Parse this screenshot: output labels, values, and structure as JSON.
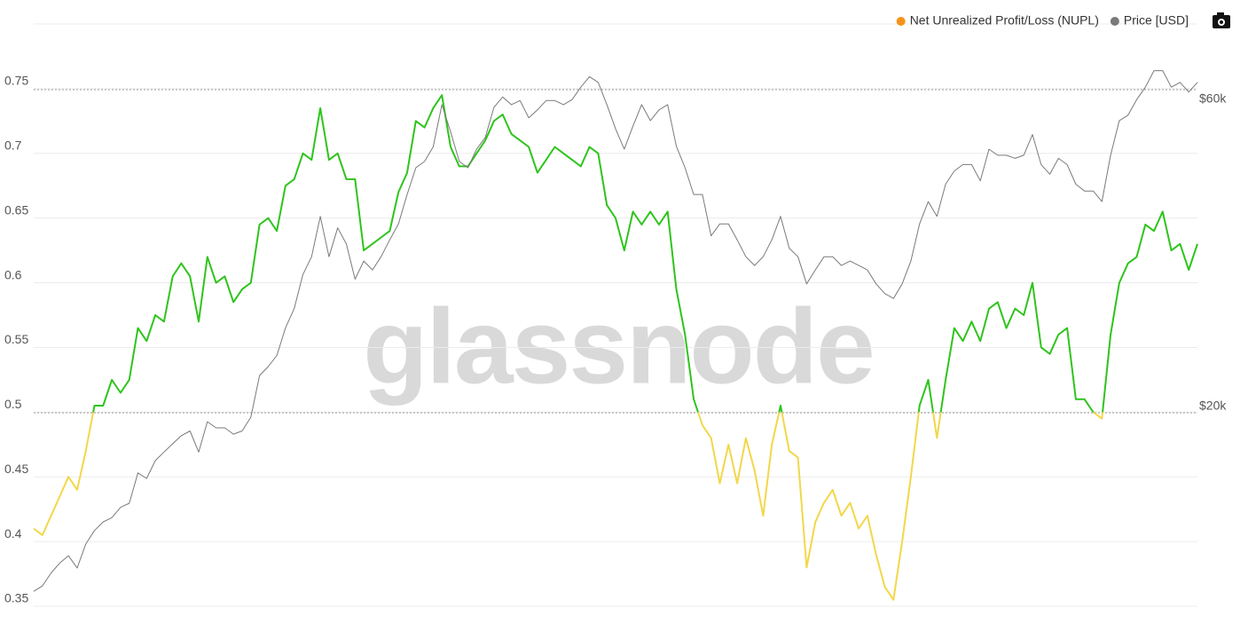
{
  "chart_data": {
    "type": "line",
    "watermark": "glassnode",
    "series": [
      {
        "name": "Net Unrealized Profit/Loss (NUPL)",
        "color": "#f7931a",
        "color_zones": [
          {
            "max": 0.5,
            "color": "#f2d74a"
          },
          {
            "color": "#2ec41c"
          }
        ],
        "values": [
          0.41,
          0.405,
          0.42,
          0.435,
          0.45,
          0.44,
          0.47,
          0.505,
          0.505,
          0.525,
          0.515,
          0.525,
          0.565,
          0.555,
          0.575,
          0.57,
          0.605,
          0.615,
          0.605,
          0.57,
          0.62,
          0.6,
          0.605,
          0.585,
          0.595,
          0.6,
          0.645,
          0.65,
          0.64,
          0.675,
          0.68,
          0.7,
          0.695,
          0.735,
          0.695,
          0.7,
          0.68,
          0.68,
          0.625,
          0.63,
          0.635,
          0.64,
          0.67,
          0.685,
          0.725,
          0.72,
          0.735,
          0.745,
          0.705,
          0.69,
          0.69,
          0.7,
          0.71,
          0.725,
          0.73,
          0.715,
          0.71,
          0.705,
          0.685,
          0.695,
          0.705,
          0.7,
          0.695,
          0.69,
          0.705,
          0.7,
          0.66,
          0.65,
          0.625,
          0.655,
          0.645,
          0.655,
          0.645,
          0.655,
          0.595,
          0.56,
          0.51,
          0.49,
          0.48,
          0.445,
          0.475,
          0.445,
          0.48,
          0.455,
          0.42,
          0.475,
          0.505,
          0.47,
          0.465,
          0.38,
          0.415,
          0.43,
          0.44,
          0.42,
          0.43,
          0.41,
          0.42,
          0.39,
          0.365,
          0.355,
          0.4,
          0.45,
          0.505,
          0.525,
          0.48,
          0.525,
          0.565,
          0.555,
          0.57,
          0.555,
          0.58,
          0.585,
          0.565,
          0.58,
          0.575,
          0.6,
          0.55,
          0.545,
          0.56,
          0.565,
          0.51,
          0.51,
          0.5,
          0.495,
          0.56,
          0.6,
          0.615,
          0.62,
          0.645,
          0.64,
          0.655,
          0.625,
          0.63,
          0.61,
          0.63
        ]
      },
      {
        "name": "Price [USD]",
        "color": "#7a7a7a",
        "axis": "y2",
        "values": [
          10900,
          11100,
          11600,
          12000,
          12300,
          11800,
          12800,
          13400,
          13800,
          14000,
          14500,
          14700,
          16300,
          16000,
          17000,
          17500,
          18000,
          18500,
          18800,
          17500,
          19400,
          19000,
          19000,
          18600,
          18800,
          19700,
          22700,
          23400,
          24300,
          26700,
          28500,
          32000,
          34000,
          39000,
          34000,
          37500,
          35500,
          31500,
          33500,
          32500,
          34000,
          36000,
          38000,
          42000,
          46000,
          47000,
          49400,
          57000,
          52000,
          47000,
          46000,
          49000,
          51000,
          56500,
          58500,
          57000,
          57800,
          54500,
          56000,
          57800,
          57800,
          57000,
          58000,
          60500,
          62700,
          61500,
          57000,
          52500,
          49000,
          53000,
          57000,
          54000,
          56000,
          57000,
          49500,
          46000,
          42000,
          42000,
          36500,
          38000,
          38000,
          36000,
          34000,
          33000,
          34000,
          36000,
          39000,
          35000,
          34000,
          31000,
          32500,
          34000,
          34000,
          33000,
          33500,
          33000,
          32500,
          31000,
          30000,
          29500,
          31000,
          33500,
          38000,
          41000,
          39000,
          43500,
          45500,
          46500,
          46500,
          44000,
          49000,
          48000,
          48000,
          47500,
          48000,
          51500,
          46500,
          45000,
          47500,
          46500,
          43500,
          42500,
          42500,
          41000,
          48000,
          54000,
          55000,
          58000,
          60500,
          64000,
          64000,
          60500,
          61500,
          59500,
          61500
        ]
      }
    ],
    "ylim": [
      0.35,
      0.8
    ],
    "yticks": [
      0.35,
      0.4,
      0.45,
      0.5,
      0.55,
      0.6,
      0.65,
      0.7,
      0.75
    ],
    "y2lim": [
      10360,
      75000
    ],
    "y2log": true,
    "y2ticks": [
      {
        "value": 20000,
        "label": "$20k"
      },
      {
        "value": 60000,
        "label": "$60k"
      }
    ],
    "grid": true,
    "legend": "top-right"
  }
}
